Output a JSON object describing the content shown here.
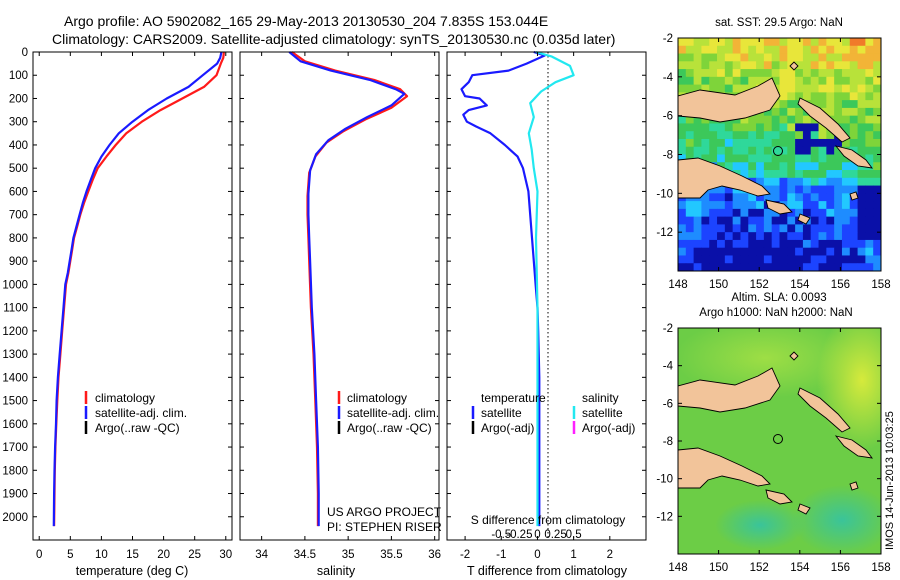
{
  "header": {
    "line1": "Argo profile: AO 5902082_165 29-May-2013 20130530_204 7.835S 153.044E",
    "line2": "Climatology: CARS2009. Satellite-adjusted climatology: synTS_20130530.nc (0.035d later)"
  },
  "credits": {
    "line1": "US ARGO PROJECT",
    "line2": "PI: STEPHEN RISER"
  },
  "timestamp": "IMOS 14-Jun-2013 10:03:25",
  "colors": {
    "climatology": "#ff1a1a",
    "satellite": "#1a1aff",
    "argo": "#000000",
    "sal_satellite": "#22e8f0",
    "sal_argo": "#ff20ff"
  },
  "chart_data": [
    {
      "type": "line",
      "name": "temperature",
      "xlabel": "temperature (deg C)",
      "ylabel": "",
      "xlim": [
        -1,
        31
      ],
      "ylim": [
        2100,
        0
      ],
      "xticks": [
        0,
        5,
        10,
        15,
        20,
        25,
        30
      ],
      "xtick_labels": [
        "0",
        "5",
        "10",
        "15",
        "20",
        "25",
        "30"
      ],
      "yticks": [
        0,
        100,
        200,
        300,
        400,
        500,
        600,
        700,
        800,
        900,
        1000,
        1100,
        1200,
        1300,
        1400,
        1500,
        1600,
        1700,
        1800,
        1900,
        2000
      ],
      "ytick_labels": [
        "0",
        "100",
        "200",
        "300",
        "400",
        "500",
        "600",
        "700",
        "800",
        "900",
        "1000",
        "1100",
        "1200",
        "1300",
        "1400",
        "1500",
        "1600",
        "1700",
        "1800",
        "1900",
        "2000"
      ],
      "legend": [
        "climatology",
        "satellite-adj. clim.",
        "Argo(..raw -QC)"
      ],
      "series": [
        {
          "name": "climatology",
          "color": "#ff1a1a",
          "x": [
            29.7,
            29.6,
            29.2,
            28.5,
            26.5,
            23.0,
            19.5,
            16.5,
            14.0,
            12.3,
            10.8,
            9.4,
            8.6,
            7.9,
            7.2,
            6.6,
            6.1,
            5.6,
            5.3,
            5.0,
            4.7,
            4.3,
            4.0,
            3.7,
            3.4,
            3.1,
            2.9,
            2.75,
            2.6,
            2.5,
            2.45,
            2.4
          ],
          "y": [
            0,
            25,
            50,
            100,
            150,
            200,
            250,
            300,
            350,
            400,
            450,
            500,
            550,
            600,
            650,
            700,
            750,
            800,
            850,
            900,
            950,
            1000,
            1100,
            1200,
            1300,
            1400,
            1500,
            1600,
            1700,
            1800,
            1900,
            2040
          ]
        },
        {
          "name": "satellite-adj. clim.",
          "color": "#1a1aff",
          "x": [
            29.3,
            29.1,
            28.6,
            26.3,
            24.0,
            20.5,
            17.5,
            15.0,
            12.8,
            11.3,
            10.0,
            9.0,
            8.3,
            7.6,
            7.0,
            6.5,
            6.0,
            5.5,
            5.2,
            4.9,
            4.6,
            4.2,
            3.9,
            3.6,
            3.3,
            3.0,
            2.8,
            2.7,
            2.55,
            2.45,
            2.4,
            2.35
          ],
          "y": [
            0,
            25,
            50,
            100,
            150,
            200,
            250,
            300,
            350,
            400,
            450,
            500,
            550,
            600,
            650,
            700,
            750,
            800,
            850,
            900,
            950,
            1000,
            1100,
            1200,
            1300,
            1400,
            1500,
            1600,
            1700,
            1800,
            1900,
            2040
          ]
        }
      ]
    },
    {
      "type": "line",
      "name": "salinity",
      "xlabel": "salinity",
      "xlim": [
        33.75,
        36.05
      ],
      "ylim": [
        2100,
        0
      ],
      "xticks": [
        34,
        34.5,
        35,
        35.5,
        36
      ],
      "xtick_labels": [
        "34",
        "34.5",
        "35",
        "35.5",
        "36"
      ],
      "legend": [
        "climatology",
        "satellite-adj. clim.",
        "Argo(..raw -QC)"
      ],
      "series": [
        {
          "name": "climatology",
          "color": "#ff1a1a",
          "x": [
            34.35,
            34.5,
            34.85,
            35.3,
            35.6,
            35.68,
            35.5,
            35.2,
            34.95,
            34.75,
            34.62,
            34.55,
            34.53,
            34.53,
            34.54,
            34.55,
            34.57,
            34.6,
            34.62,
            34.64,
            34.65,
            34.65
          ],
          "y": [
            0,
            40,
            80,
            120,
            160,
            190,
            240,
            290,
            340,
            390,
            450,
            520,
            620,
            700,
            800,
            900,
            1100,
            1300,
            1500,
            1700,
            1900,
            2040
          ]
        },
        {
          "name": "satellite-adj. clim.",
          "color": "#1a1aff",
          "x": [
            34.32,
            34.45,
            34.8,
            35.25,
            35.55,
            35.65,
            35.5,
            35.22,
            34.97,
            34.77,
            34.63,
            34.56,
            34.54,
            34.54,
            34.55,
            34.56,
            34.58,
            34.61,
            34.63,
            34.65,
            34.66,
            34.66
          ],
          "y": [
            0,
            40,
            80,
            120,
            160,
            180,
            230,
            280,
            330,
            380,
            440,
            510,
            610,
            700,
            800,
            900,
            1100,
            1300,
            1500,
            1700,
            1900,
            2040
          ]
        }
      ]
    },
    {
      "type": "line",
      "name": "difference",
      "xlabel": "T difference from climatology",
      "xlabel_top": "S difference from climatology",
      "xlim": [
        -2.5,
        3.0
      ],
      "ylim": [
        2100,
        0
      ],
      "xticks": [
        -2,
        -1,
        0,
        1,
        2
      ],
      "xtick_labels": [
        "-2",
        "-1",
        "0",
        "1",
        "2"
      ],
      "sticks": [
        -0.5,
        -0.25,
        0,
        0.25,
        0.5
      ],
      "stick_labels": [
        "-0.5",
        "-0.25",
        "0",
        "0.25",
        "0.5"
      ],
      "legend_headers": [
        "temperature",
        "salinity"
      ],
      "legend": [
        "satellite",
        "Argo(-adj)",
        "satellite",
        "Argo(-adj)"
      ],
      "series": [
        {
          "name": "T satellite",
          "color": "#1a1aff",
          "x": [
            -0.1,
            0.2,
            -0.3,
            -0.8,
            -1.8,
            -1.9,
            -2.1,
            -2.0,
            -1.6,
            -1.4,
            -1.9,
            -2.05,
            -1.95,
            -1.7,
            -1.3,
            -0.9,
            -0.55,
            -0.4,
            -0.25,
            -0.2,
            -0.15,
            -0.1,
            -0.05,
            0.0,
            0.02,
            0.05,
            0.05,
            0.05,
            0.05
          ],
          "y": [
            0,
            15,
            50,
            80,
            100,
            130,
            160,
            190,
            200,
            230,
            250,
            270,
            300,
            320,
            350,
            400,
            450,
            500,
            600,
            700,
            800,
            900,
            1000,
            1100,
            1200,
            1400,
            1600,
            1800,
            2040
          ]
        },
        {
          "name": "S satellite",
          "color": "#22e8f0",
          "x": [
            -0.02,
            0.2,
            0.45,
            0.5,
            0.25,
            0.05,
            -0.1,
            -0.05,
            -0.12,
            -0.08,
            -0.05,
            0.0,
            -0.02,
            0.0,
            0.0,
            0.0
          ],
          "y": [
            0,
            20,
            60,
            100,
            130,
            170,
            220,
            280,
            350,
            420,
            500,
            600,
            800,
            1100,
            1500,
            2040
          ]
        }
      ]
    },
    {
      "type": "heatmap",
      "name": "sat-sst-map",
      "title": "sat. SST: 29.5 Argo: NaN",
      "xlim": [
        148,
        158
      ],
      "ylim": [
        -14,
        -2
      ],
      "xticks": [
        148,
        150,
        152,
        154,
        156,
        158
      ],
      "xtick_labels": [
        "148",
        "150",
        "152",
        "154",
        "156",
        "158"
      ],
      "yticks": [
        -2,
        -4,
        -6,
        -8,
        -10,
        -12
      ],
      "ytick_labels": [
        "-2",
        "-4",
        "-6",
        "-8",
        "-10",
        "-12"
      ],
      "marker": [
        153,
        -7.83
      ]
    },
    {
      "type": "heatmap",
      "name": "altim-sla-map",
      "title": "Altim. SLA: 0.0093",
      "subtitle": "Argo h1000: NaN h2000: NaN",
      "xlim": [
        148,
        158
      ],
      "ylim": [
        -14,
        -2
      ],
      "xticks": [
        148,
        150,
        152,
        154,
        156,
        158
      ],
      "xtick_labels": [
        "148",
        "150",
        "152",
        "154",
        "156",
        "158"
      ],
      "yticks": [
        -2,
        -4,
        -6,
        -8,
        -10,
        -12
      ],
      "ytick_labels": [
        "-2",
        "-4",
        "-6",
        "-8",
        "-10",
        "-12"
      ],
      "marker": [
        153,
        -7.83
      ]
    }
  ]
}
